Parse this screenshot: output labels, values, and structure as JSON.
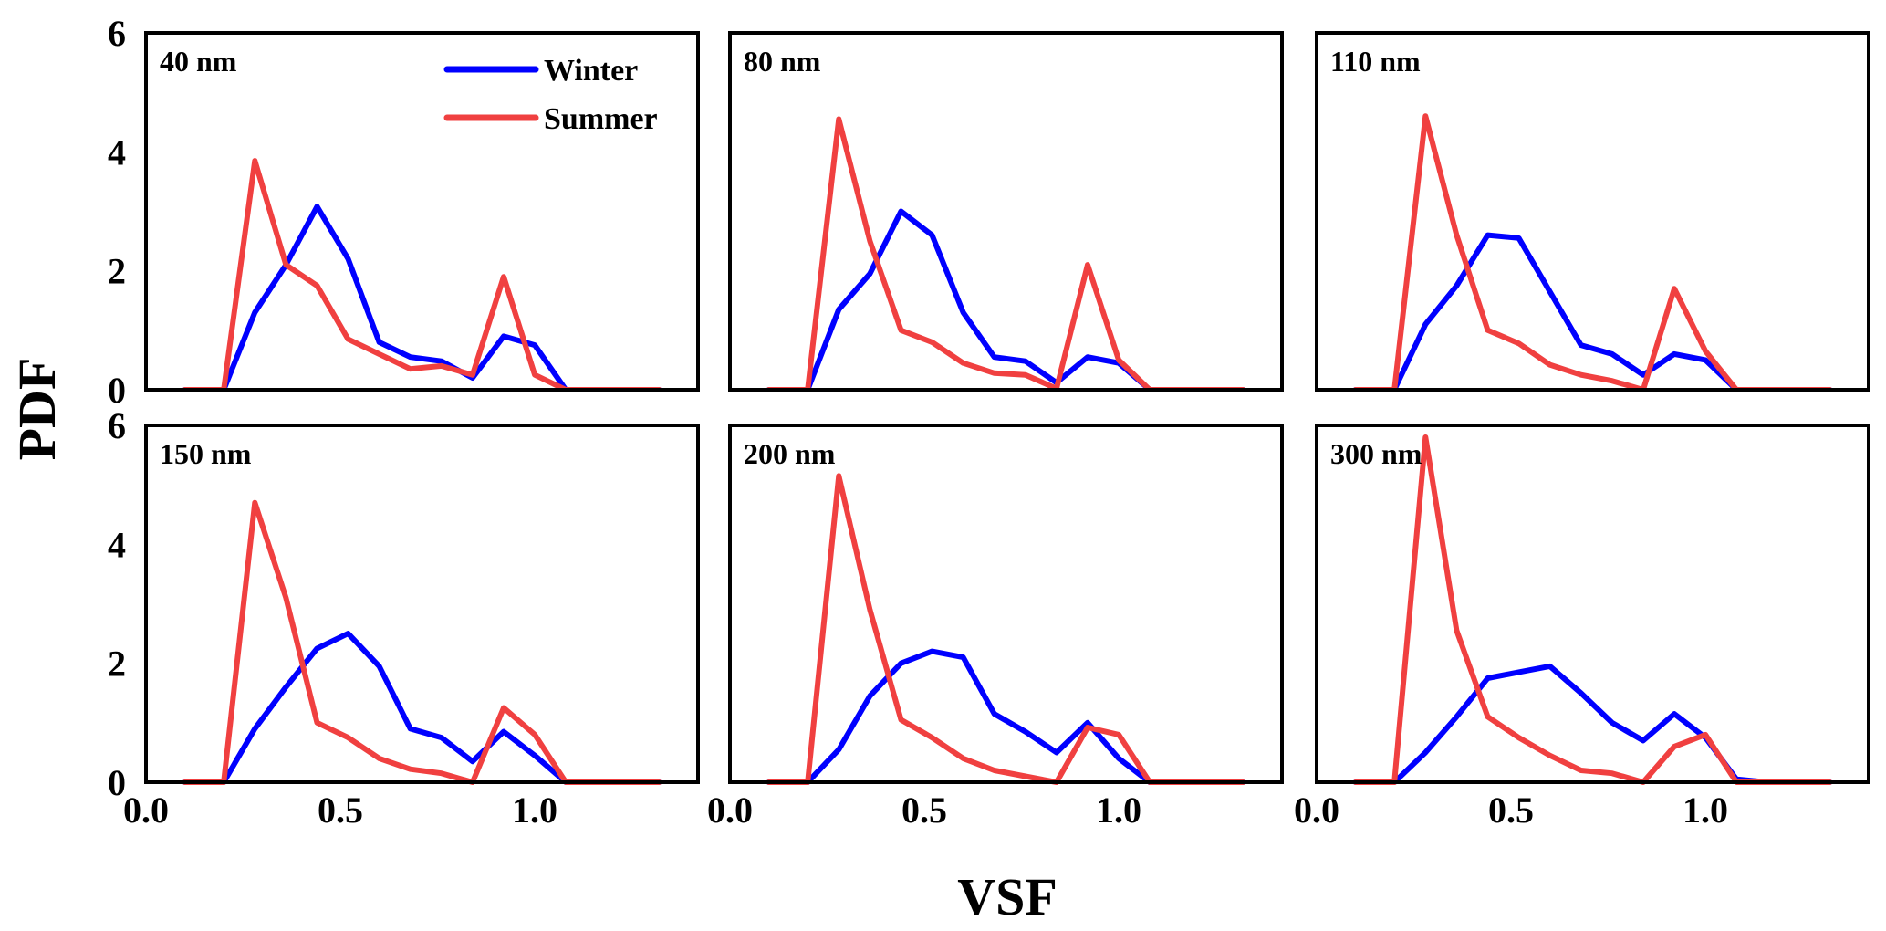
{
  "chart_data": {
    "type": "line",
    "xlabel": "VSF",
    "ylabel": "PDF",
    "xlim": [
      0,
      1.42
    ],
    "ylim": [
      0,
      6
    ],
    "xticks": [
      "0.0",
      "0.5",
      "1.0"
    ],
    "xtick_values": [
      0,
      0.5,
      1.0
    ],
    "yticks": [
      "0",
      "2",
      "4",
      "6"
    ],
    "ytick_values": [
      0,
      2,
      4,
      6
    ],
    "grid": false,
    "legend": {
      "placement": "top-right of first panel",
      "entries": [
        "Winter",
        "Summer"
      ]
    },
    "colors": {
      "Winter": "#0000ff",
      "Summer": "#f04040"
    },
    "x": [
      0.1,
      0.2,
      0.28,
      0.36,
      0.44,
      0.52,
      0.6,
      0.68,
      0.76,
      0.84,
      0.92,
      1.0,
      1.08,
      1.16,
      1.24,
      1.32
    ],
    "panels": [
      {
        "label": "40 nm",
        "series": [
          {
            "name": "Winter",
            "values": [
              0,
              0,
              1.3,
              2.1,
              3.08,
              2.2,
              0.8,
              0.55,
              0.48,
              0.2,
              0.9,
              0.75,
              0,
              0,
              0,
              0
            ]
          },
          {
            "name": "Summer",
            "values": [
              0,
              0,
              3.85,
              2.1,
              1.75,
              0.85,
              0.6,
              0.35,
              0.4,
              0.25,
              1.9,
              0.25,
              0,
              0,
              0,
              0
            ]
          }
        ]
      },
      {
        "label": "80 nm",
        "series": [
          {
            "name": "Winter",
            "values": [
              0,
              0,
              1.35,
              1.95,
              3.0,
              2.6,
              1.3,
              0.55,
              0.48,
              0.12,
              0.55,
              0.45,
              0,
              0,
              0,
              0
            ]
          },
          {
            "name": "Summer",
            "values": [
              0,
              0,
              4.55,
              2.5,
              1.0,
              0.8,
              0.45,
              0.28,
              0.25,
              0.02,
              2.1,
              0.5,
              0,
              0,
              0,
              0
            ]
          }
        ]
      },
      {
        "label": "110 nm",
        "series": [
          {
            "name": "Winter",
            "values": [
              0,
              0,
              1.1,
              1.75,
              2.6,
              2.55,
              1.65,
              0.75,
              0.6,
              0.25,
              0.6,
              0.5,
              0,
              0,
              0,
              0
            ]
          },
          {
            "name": "Summer",
            "values": [
              0,
              0,
              4.6,
              2.6,
              1.0,
              0.78,
              0.42,
              0.25,
              0.15,
              0,
              1.7,
              0.65,
              0,
              0,
              0,
              0
            ]
          }
        ]
      },
      {
        "label": "150 nm",
        "series": [
          {
            "name": "Winter",
            "values": [
              0,
              0,
              0.9,
              1.6,
              2.25,
              2.5,
              1.95,
              0.9,
              0.75,
              0.35,
              0.85,
              0.45,
              0,
              0,
              0,
              0
            ]
          },
          {
            "name": "Summer",
            "values": [
              0,
              0,
              4.7,
              3.1,
              1.0,
              0.75,
              0.4,
              0.22,
              0.15,
              0,
              1.25,
              0.8,
              0,
              0,
              0,
              0
            ]
          }
        ]
      },
      {
        "label": "200 nm",
        "series": [
          {
            "name": "Winter",
            "values": [
              0,
              0,
              0.55,
              1.45,
              2.0,
              2.2,
              2.1,
              1.15,
              0.85,
              0.5,
              1.0,
              0.4,
              0,
              0,
              0,
              0
            ]
          },
          {
            "name": "Summer",
            "values": [
              0,
              0,
              5.15,
              2.9,
              1.05,
              0.75,
              0.4,
              0.2,
              0.1,
              0,
              0.92,
              0.8,
              0,
              0,
              0,
              0
            ]
          }
        ]
      },
      {
        "label": "300 nm",
        "series": [
          {
            "name": "Winter",
            "values": [
              0,
              0,
              0.5,
              1.1,
              1.75,
              1.85,
              1.95,
              1.5,
              1.0,
              0.7,
              1.15,
              0.75,
              0.05,
              0,
              0,
              0
            ]
          },
          {
            "name": "Summer",
            "values": [
              0,
              0,
              5.8,
              2.55,
              1.1,
              0.75,
              0.45,
              0.2,
              0.15,
              0,
              0.6,
              0.8,
              0,
              0,
              0,
              0
            ]
          }
        ]
      }
    ]
  }
}
